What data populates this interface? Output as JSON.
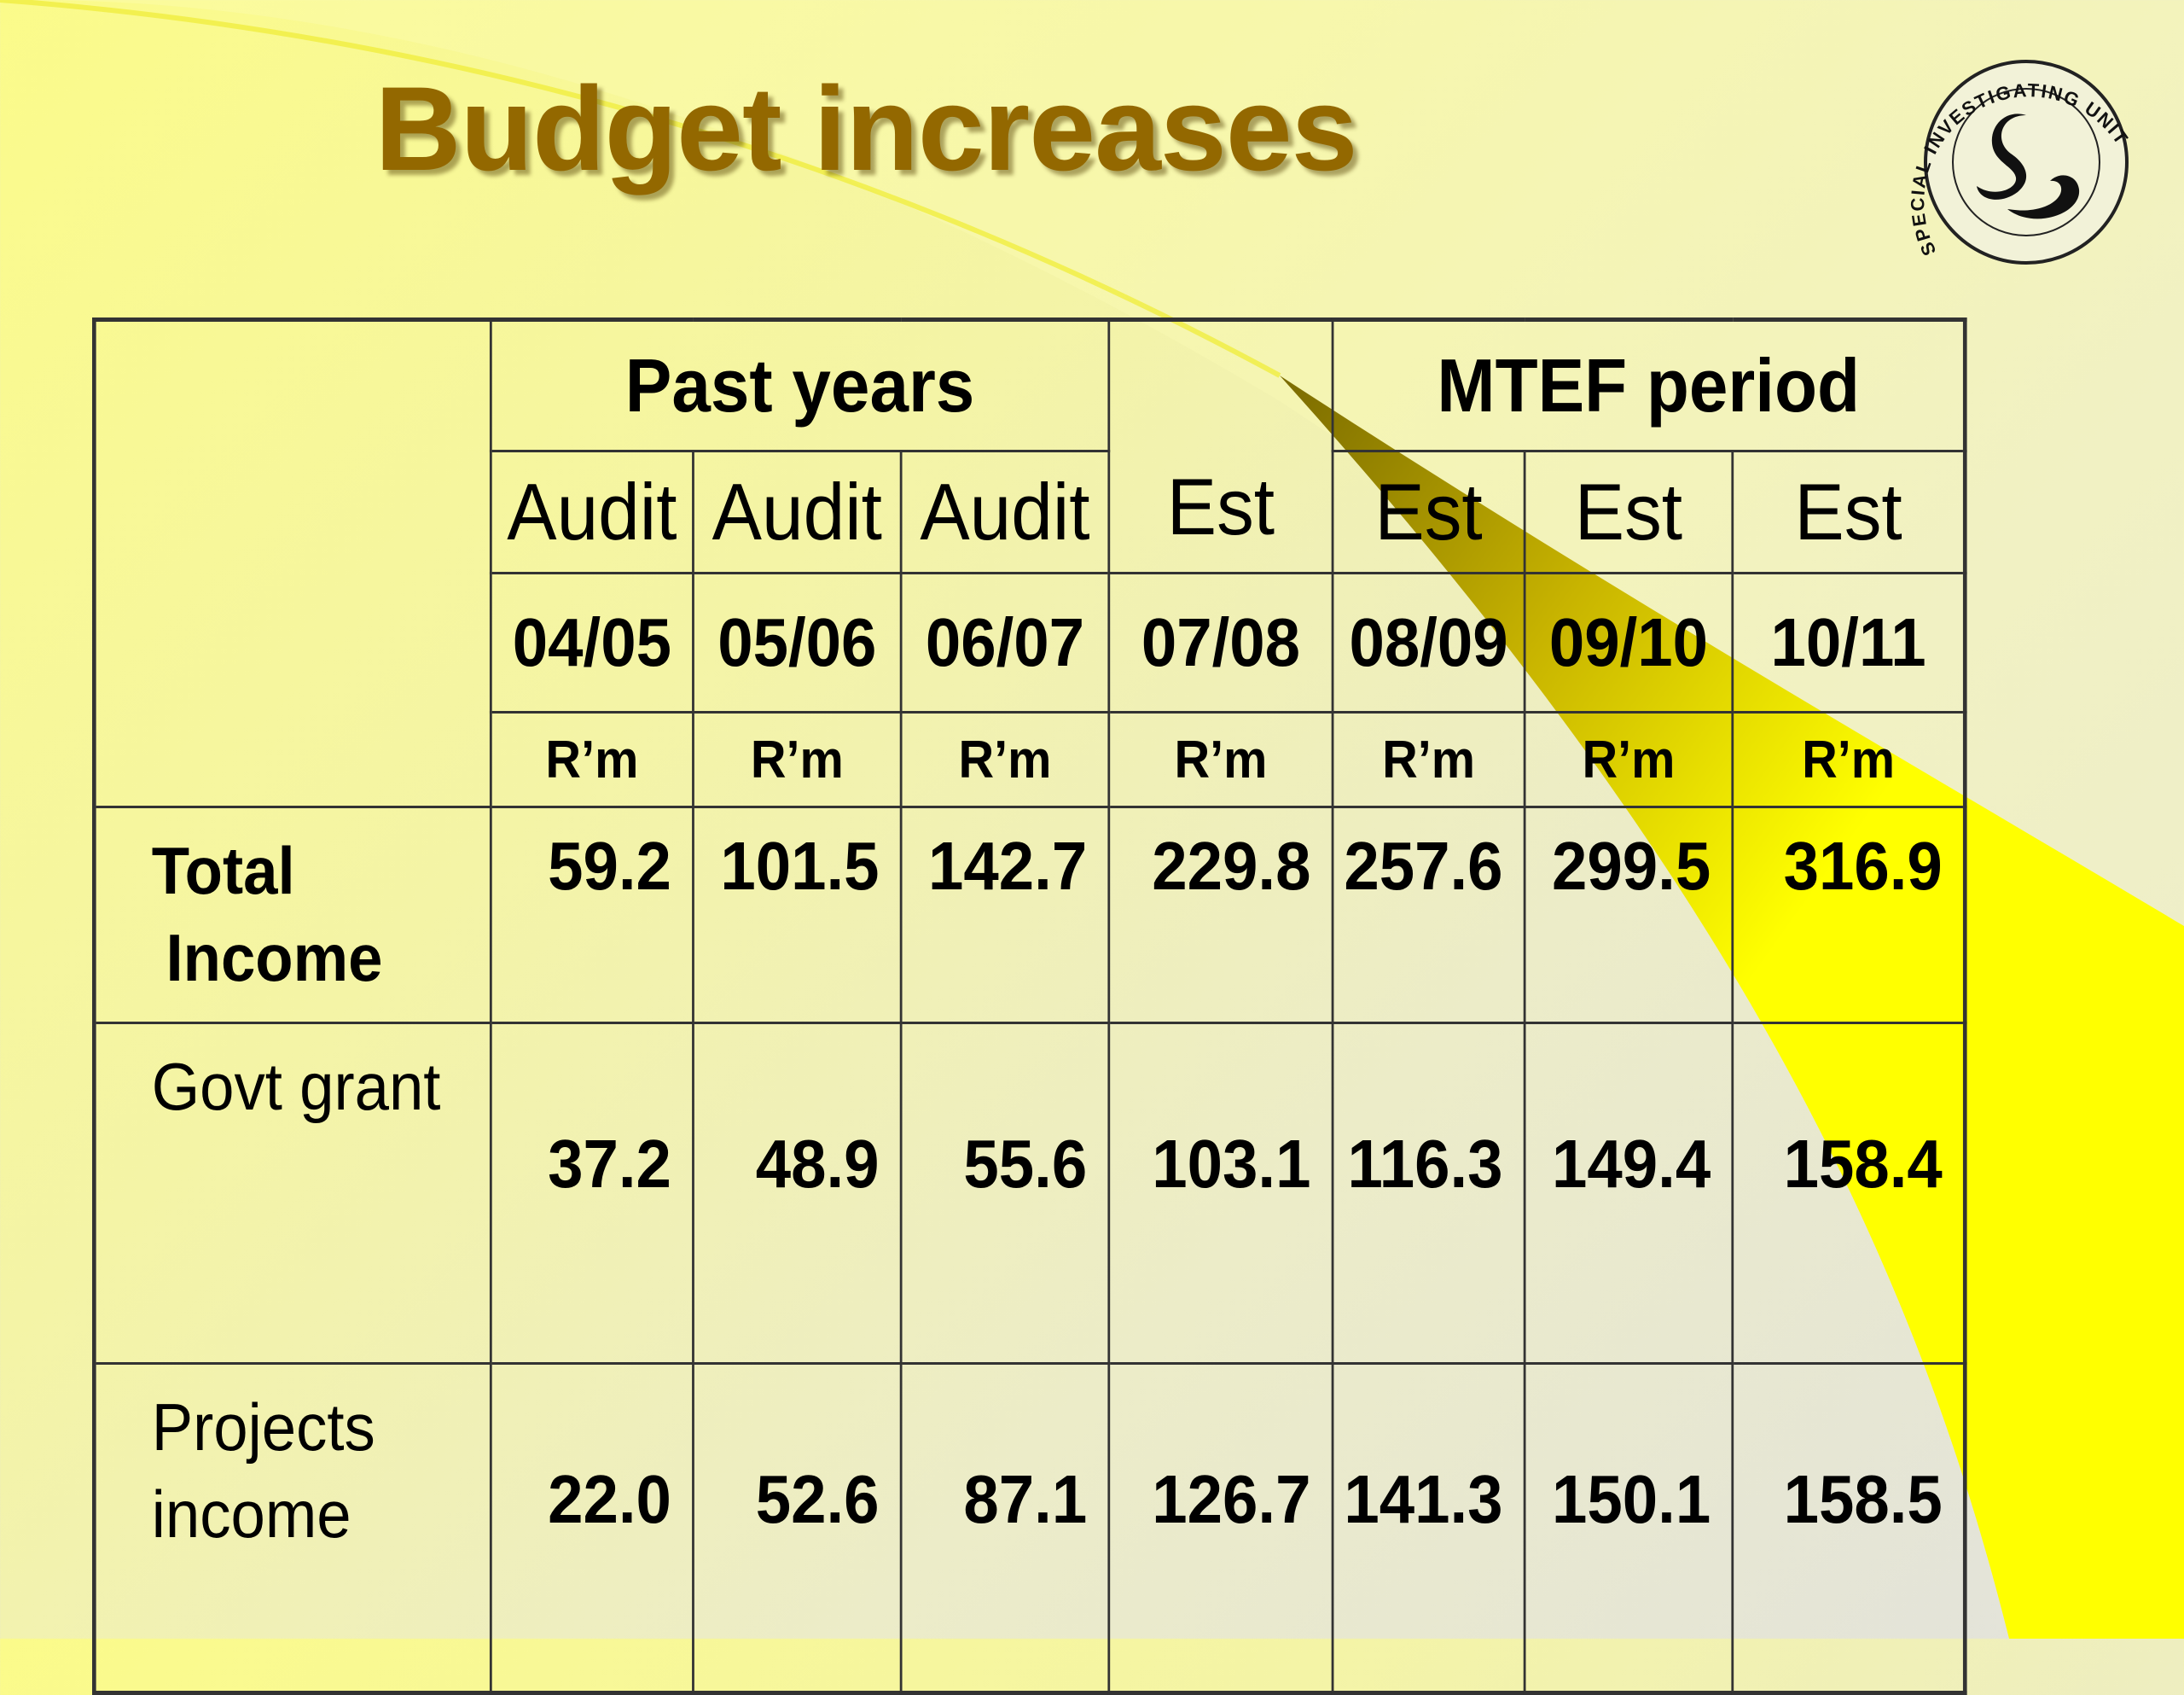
{
  "title": "Budget increases",
  "logo": {
    "text": "SPECIAL INVESTIGATING UNIT",
    "icon": "cobra-emblem-icon"
  },
  "table": {
    "groups": {
      "past": "Past years",
      "mtef": "MTEF period"
    },
    "columns": [
      {
        "type": "Audit",
        "year": "04/05",
        "unit": "R’m"
      },
      {
        "type": "Audit",
        "year": "05/06",
        "unit": "R’m"
      },
      {
        "type": "Audit",
        "year": "06/07",
        "unit": "R’m"
      },
      {
        "type": "Est",
        "year": "07/08",
        "unit": "R’m"
      },
      {
        "type": "Est",
        "year": "08/09",
        "unit": "R’m"
      },
      {
        "type": "Est",
        "year": "09/10",
        "unit": "R’m"
      },
      {
        "type": "Est",
        "year": "10/11",
        "unit": "R’m"
      }
    ],
    "rows": [
      {
        "label_line1": "Total",
        "label_line2": "Income",
        "values": [
          "59.2",
          "101.5",
          "142.7",
          "229.8",
          "257.6",
          "299.5",
          "316.9"
        ]
      },
      {
        "label_line1": "Govt grant",
        "label_line2": "",
        "values": [
          "37.2",
          "48.9",
          "55.6",
          "103.1",
          "116.3",
          "149.4",
          "158.4"
        ]
      },
      {
        "label_line1": "Projects",
        "label_line2": "income",
        "values": [
          "22.0",
          "52.6",
          "87.1",
          "126.7",
          "141.3",
          "150.1",
          "158.5"
        ]
      }
    ]
  },
  "colors": {
    "title": "#936800",
    "accent_yellow": "#ffff00",
    "background": "#f4f4a6"
  }
}
